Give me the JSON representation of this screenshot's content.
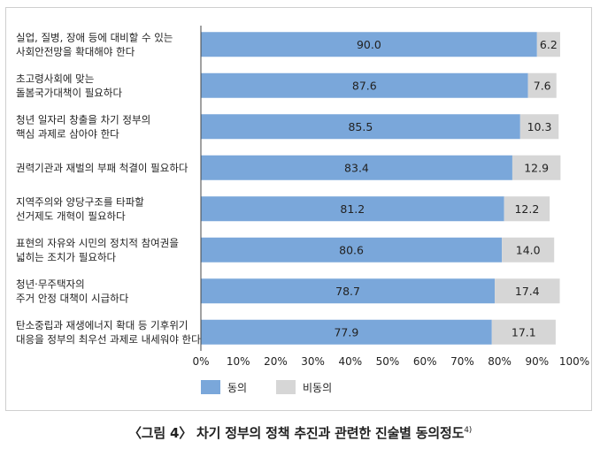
{
  "chart_data": {
    "type": "bar",
    "orientation": "horizontal",
    "stacked": true,
    "categories": [
      [
        "실업, 질병, 장애 등에 대비할 수 있는",
        "사회안전망을 확대해야 한다"
      ],
      [
        "초고령사회에 맞는",
        "돌봄국가대책이 필요하다"
      ],
      [
        "청년 일자리 창출을 차기 정부의",
        "핵심 과제로 삼아야 한다"
      ],
      [
        "권력기관과 재벌의 부패 척결이 필요하다"
      ],
      [
        "지역주의와 양당구조를 타파할",
        "선거제도 개혁이 필요하다"
      ],
      [
        "표현의 자유와 시민의 정치적 참여권을",
        "넓히는 조치가 필요하다"
      ],
      [
        "청년·무주택자의",
        "주거 안정 대책이 시급하다"
      ],
      [
        "탄소중립과 재생에너지 확대 등 기후위기",
        "대응을 정부의 최우선 과제로 내세워야 한다"
      ]
    ],
    "series": [
      {
        "name": "동의",
        "color": "#7aa7da",
        "values": [
          90.0,
          87.6,
          85.5,
          83.4,
          81.2,
          80.6,
          78.7,
          77.9
        ],
        "labels": [
          "90.0",
          "87.6",
          "85.5",
          "83.4",
          "81.2",
          "80.6",
          "78.7",
          "77.9"
        ]
      },
      {
        "name": "비동의",
        "color": "#d6d6d6",
        "values": [
          6.2,
          7.6,
          10.3,
          12.9,
          12.2,
          14.0,
          17.4,
          17.1
        ],
        "labels": [
          "6.2",
          "7.6",
          "10.3",
          "12.9",
          "12.2",
          "14.0",
          "17.4",
          "17.1"
        ]
      }
    ],
    "xlim": [
      0,
      100
    ],
    "xticks": [
      "0%",
      "10%",
      "20%",
      "30%",
      "40%",
      "50%",
      "60%",
      "70%",
      "80%",
      "90%",
      "100%"
    ],
    "grid": false,
    "legend": "bottom-left"
  },
  "caption": {
    "text": "〈그림 4〉 차기 정부의 정책 추진과 관련한 진술별 동의정도",
    "footnote": "4)"
  }
}
